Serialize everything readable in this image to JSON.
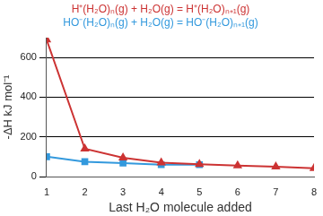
{
  "chart_data": {
    "type": "line",
    "x_label": "Last H₂O molecule added",
    "y_label": "-ΔH kJ mol⁻¹",
    "x": [
      1,
      2,
      3,
      4,
      5,
      6,
      7,
      8
    ],
    "series": [
      {
        "name": "H⁺(H₂O)ₙ(g) + H₂O(g) = H⁺(H₂O)ₙ₊₁(g)",
        "color": "#cc3333",
        "marker": "triangle",
        "line_style": "solid",
        "values": [
          690,
          140,
          95,
          70,
          62,
          55,
          50,
          42
        ]
      },
      {
        "name": "HO⁻(H₂O)ₙ(g) + H₂O(g) = HO⁻(H₂O)ₙ₊₁(g)",
        "color": "#3399dd",
        "marker": "square",
        "line_style": "solid",
        "values": [
          100,
          75,
          68,
          60,
          60,
          null,
          null,
          null
        ]
      }
    ],
    "xlim": [
      1,
      8
    ],
    "xticks": [
      1,
      2,
      3,
      4,
      5,
      6,
      7,
      8
    ],
    "ylim": [
      0,
      700
    ],
    "yticks": [
      0,
      200,
      400,
      600
    ],
    "grid": true,
    "legend": "top"
  }
}
